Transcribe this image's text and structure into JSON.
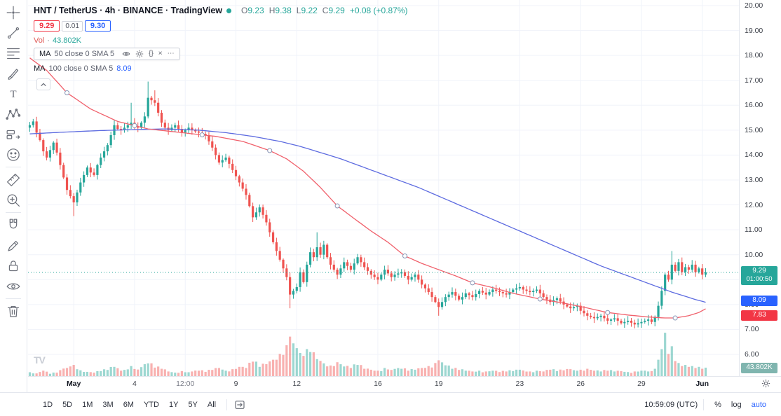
{
  "header": {
    "symbol_title": "HNT / TetherUS · 4h · BINANCE · TradingView",
    "status_dot_color": "#26a69a",
    "ohlc_pairs": [
      {
        "k": "O",
        "v": "9.23"
      },
      {
        "k": "H",
        "v": "9.38"
      },
      {
        "k": "L",
        "v": "9.22"
      },
      {
        "k": "C",
        "v": "9.29"
      }
    ],
    "ohlc_change": "+0.08 (+0.87%)",
    "ohlc_value_color": "#26a69a",
    "sell_price": "9.29",
    "spread": "0.01",
    "buy_price": "9.30",
    "sell_color": "#f23645",
    "buy_color": "#2962ff",
    "volume_row": {
      "label": "Vol",
      "sep": "·",
      "value": "43.802K",
      "label_color": "#e05c58",
      "value_color": "#26a69a"
    },
    "indicators": [
      {
        "name": "MA",
        "params": "50 close 0 SMA 5",
        "value": "",
        "value_color": "#f23645",
        "hovered": true
      },
      {
        "name": "MA",
        "params": "100 close 0 SMA 5",
        "value": "8.09",
        "value_color": "#2962ff",
        "hovered": false
      }
    ],
    "indicator_actions": [
      {
        "name": "hide"
      },
      {
        "name": "settings"
      },
      {
        "name": "source-code"
      },
      {
        "name": "remove"
      },
      {
        "name": "more"
      }
    ]
  },
  "left_toolbar": {
    "tools": [
      {
        "name": "crosshair"
      },
      {
        "name": "trend-line"
      },
      {
        "name": "fib-retracement"
      },
      {
        "name": "brush"
      },
      {
        "name": "text"
      },
      {
        "name": "xabcd-pattern"
      },
      {
        "name": "forecast"
      },
      {
        "name": "emoji"
      },
      {
        "name": "measure"
      },
      {
        "name": "zoom-in"
      },
      {
        "name": "magnet"
      },
      {
        "name": "drawing-mode"
      },
      {
        "name": "lock-all"
      },
      {
        "name": "hide-all"
      },
      {
        "name": "remove-all"
      }
    ],
    "separators_after": [
      7,
      9,
      13
    ]
  },
  "bottom_toolbar": {
    "ranges": [
      "1D",
      "5D",
      "1M",
      "3M",
      "6M",
      "YTD",
      "1Y",
      "5Y",
      "All"
    ],
    "go_to_date_icon": "go-to-date",
    "clock": "10:59:09 (UTC)",
    "percent_label": "%",
    "log_label": "log",
    "auto_label": "auto",
    "auto_color": "#2962ff"
  },
  "chart_data": {
    "type": "candlestick",
    "title": "HNT / TetherUS 4h BINANCE",
    "symbol": "HNT/USDT",
    "interval": "4h",
    "exchange": "BINANCE",
    "ohlc_current": {
      "open": 9.23,
      "high": 9.38,
      "low": 9.22,
      "close": 9.29,
      "change": "+0.08 (+0.87%)"
    },
    "up_color": "#26a69a",
    "down_color": "#ef5350",
    "grid": true,
    "visible_price_range": [
      5.2,
      20.2
    ],
    "y_ticks": [
      {
        "label": "20.00",
        "price": 20
      },
      {
        "label": "19.00",
        "price": 19
      },
      {
        "label": "18.00",
        "price": 18
      },
      {
        "label": "17.00",
        "price": 17
      },
      {
        "label": "16.00",
        "price": 16
      },
      {
        "label": "15.00",
        "price": 15
      },
      {
        "label": "14.00",
        "price": 14
      },
      {
        "label": "13.00",
        "price": 13
      },
      {
        "label": "12.00",
        "price": 12
      },
      {
        "label": "11.00",
        "price": 11
      },
      {
        "label": "10.00",
        "price": 10
      },
      {
        "label": "9.00",
        "price": 9
      },
      {
        "label": "8.00",
        "price": 8
      },
      {
        "label": "7.00",
        "price": 7
      },
      {
        "label": "6.00",
        "price": 6
      }
    ],
    "x_ticks": [
      {
        "label": "May",
        "i": 13,
        "type": "month"
      },
      {
        "label": "4",
        "i": 31,
        "type": "day"
      },
      {
        "label": "12:00",
        "i": 46,
        "type": "time"
      },
      {
        "label": "9",
        "i": 61,
        "type": "day"
      },
      {
        "label": "12",
        "i": 79,
        "type": "day"
      },
      {
        "label": "16",
        "i": 103,
        "type": "day"
      },
      {
        "label": "19",
        "i": 121,
        "type": "day"
      },
      {
        "label": "23",
        "i": 145,
        "type": "day"
      },
      {
        "label": "26",
        "i": 163,
        "type": "day"
      },
      {
        "label": "29",
        "i": 181,
        "type": "day"
      },
      {
        "label": "Jun",
        "i": 199,
        "type": "month"
      }
    ],
    "first_open": 15.1,
    "closes": [
      15.2,
      15.35,
      14.9,
      14.6,
      14.15,
      13.9,
      14.2,
      14.5,
      14.1,
      13.6,
      13.1,
      12.6,
      12.35,
      12.1,
      12.5,
      12.9,
      13.2,
      13.5,
      13.3,
      13.2,
      13.6,
      13.9,
      14.15,
      14.4,
      14.8,
      15.2,
      15.05,
      15.0,
      15.1,
      15.2,
      15.3,
      15.15,
      15.1,
      15.3,
      15.55,
      16.3,
      16.2,
      16.1,
      15.7,
      15.3,
      15.1,
      15.0,
      15.1,
      15.2,
      15.05,
      14.9,
      15.0,
      15.1,
      15.0,
      14.95,
      14.9,
      14.85,
      14.8,
      14.55,
      14.3,
      14.0,
      13.7,
      13.8,
      13.9,
      13.65,
      13.4,
      13.15,
      12.9,
      12.65,
      12.4,
      11.95,
      11.5,
      11.7,
      11.9,
      11.6,
      11.3,
      10.9,
      10.5,
      10.15,
      9.8,
      9.45,
      9.1,
      8.4,
      8.55,
      8.7,
      9.3,
      8.9,
      9.6,
      10.1,
      9.9,
      10.3,
      10.0,
      10.4,
      9.9,
      9.6,
      9.4,
      9.2,
      9.45,
      9.7,
      9.55,
      9.4,
      9.65,
      9.9,
      9.7,
      9.5,
      9.35,
      9.2,
      9.1,
      9.0,
      9.2,
      9.4,
      9.25,
      9.1,
      9.2,
      9.25,
      9.3,
      9.15,
      9.0,
      9.1,
      9.2,
      9.0,
      8.8,
      8.65,
      8.5,
      8.3,
      8.1,
      7.9,
      8.1,
      8.3,
      8.4,
      8.5,
      8.35,
      8.2,
      8.3,
      8.45,
      8.38,
      8.3,
      8.42,
      8.55,
      8.48,
      8.4,
      8.5,
      8.6,
      8.55,
      8.5,
      8.45,
      8.4,
      8.5,
      8.6,
      8.65,
      8.7,
      8.6,
      8.55,
      8.5,
      8.55,
      8.6,
      8.45,
      8.3,
      8.2,
      8.1,
      8.18,
      8.25,
      8.12,
      8.0,
      7.92,
      7.85,
      7.9,
      7.95,
      7.75,
      7.65,
      7.55,
      7.5,
      7.45,
      7.5,
      7.55,
      7.45,
      7.35,
      7.4,
      7.45,
      7.35,
      7.25,
      7.3,
      7.35,
      7.27,
      7.2,
      7.25,
      7.3,
      7.35,
      7.4,
      7.3,
      7.5,
      7.95,
      8.55,
      9.2,
      9.0,
      9.6,
      9.35,
      9.7,
      9.3,
      9.5,
      9.4,
      9.6,
      9.3,
      9.45,
      9.2,
      9.29
    ],
    "wick_spikes": [
      {
        "i": 13,
        "low": 11.55
      },
      {
        "i": 30,
        "high": 16.1
      },
      {
        "i": 35,
        "high": 16.95
      },
      {
        "i": 37,
        "high": 16.6
      },
      {
        "i": 77,
        "low": 7.85
      },
      {
        "i": 85,
        "high": 10.9
      },
      {
        "i": 121,
        "low": 7.55
      },
      {
        "i": 190,
        "high": 10.15
      }
    ],
    "ma50": {
      "name": "MA 50",
      "color": "#f0616c",
      "label_color": "#f23645",
      "current": 7.83,
      "current_label": "7.83",
      "anchors": [
        [
          0,
          17.9
        ],
        [
          5,
          17.4
        ],
        [
          11,
          16.5
        ],
        [
          18,
          15.85
        ],
        [
          26,
          15.35
        ],
        [
          35,
          15.05
        ],
        [
          45,
          14.9
        ],
        [
          55,
          14.75
        ],
        [
          63,
          14.55
        ],
        [
          71,
          14.18
        ],
        [
          76,
          13.85
        ],
        [
          81,
          13.35
        ],
        [
          86,
          12.7
        ],
        [
          91,
          11.96
        ],
        [
          96,
          11.45
        ],
        [
          101,
          10.95
        ],
        [
          106,
          10.5
        ],
        [
          111,
          9.95
        ],
        [
          116,
          9.65
        ],
        [
          121,
          9.4
        ],
        [
          126,
          9.15
        ],
        [
          131,
          8.87
        ],
        [
          137,
          8.68
        ],
        [
          143,
          8.45
        ],
        [
          151,
          8.22
        ],
        [
          157,
          8.08
        ],
        [
          163,
          7.92
        ],
        [
          171,
          7.68
        ],
        [
          177,
          7.58
        ],
        [
          183,
          7.5
        ],
        [
          188,
          7.46
        ],
        [
          191,
          7.46
        ],
        [
          195,
          7.55
        ],
        [
          198,
          7.68
        ],
        [
          200,
          7.83
        ]
      ]
    },
    "ma100": {
      "name": "MA 100",
      "color": "#5d6be0",
      "label_color": "#2962ff",
      "current": 8.09,
      "current_label": "8.09",
      "anchors": [
        [
          0,
          14.85
        ],
        [
          10,
          14.92
        ],
        [
          20,
          14.98
        ],
        [
          30,
          15.02
        ],
        [
          40,
          15.05
        ],
        [
          50,
          15.0
        ],
        [
          58,
          14.9
        ],
        [
          66,
          14.75
        ],
        [
          74,
          14.55
        ],
        [
          80,
          14.35
        ],
        [
          86,
          14.1
        ],
        [
          92,
          13.85
        ],
        [
          97,
          13.6
        ],
        [
          103,
          13.3
        ],
        [
          109,
          13.0
        ],
        [
          115,
          12.7
        ],
        [
          121,
          12.35
        ],
        [
          127,
          12.0
        ],
        [
          133,
          11.65
        ],
        [
          139,
          11.3
        ],
        [
          145,
          10.95
        ],
        [
          151,
          10.6
        ],
        [
          157,
          10.25
        ],
        [
          163,
          9.9
        ],
        [
          169,
          9.55
        ],
        [
          175,
          9.25
        ],
        [
          181,
          8.95
        ],
        [
          186,
          8.7
        ],
        [
          190,
          8.5
        ],
        [
          194,
          8.33
        ],
        [
          197,
          8.2
        ],
        [
          200,
          8.09
        ]
      ]
    },
    "volume": {
      "name": "Vol",
      "current_k": 43.802,
      "current_label": "43.802K",
      "scale_max_k": 240,
      "label_bg": "#80b5af",
      "anchors": [
        [
          0,
          20
        ],
        [
          2,
          14
        ],
        [
          4,
          28
        ],
        [
          6,
          12
        ],
        [
          8,
          18
        ],
        [
          11,
          42
        ],
        [
          13,
          58
        ],
        [
          15,
          30
        ],
        [
          17,
          22
        ],
        [
          19,
          18
        ],
        [
          21,
          26
        ],
        [
          23,
          32
        ],
        [
          25,
          48
        ],
        [
          27,
          28
        ],
        [
          30,
          52
        ],
        [
          32,
          34
        ],
        [
          35,
          66
        ],
        [
          37,
          44
        ],
        [
          39,
          38
        ],
        [
          41,
          24
        ],
        [
          43,
          18
        ],
        [
          45,
          26
        ],
        [
          47,
          20
        ],
        [
          50,
          28
        ],
        [
          52,
          22
        ],
        [
          54,
          32
        ],
        [
          56,
          42
        ],
        [
          58,
          28
        ],
        [
          60,
          36
        ],
        [
          62,
          48
        ],
        [
          64,
          42
        ],
        [
          66,
          75
        ],
        [
          68,
          48
        ],
        [
          70,
          62
        ],
        [
          72,
          85
        ],
        [
          74,
          115
        ],
        [
          76,
          160
        ],
        [
          77,
          205
        ],
        [
          78,
          170
        ],
        [
          79,
          145
        ],
        [
          80,
          120
        ],
        [
          81,
          105
        ],
        [
          83,
          125
        ],
        [
          85,
          88
        ],
        [
          87,
          66
        ],
        [
          89,
          55
        ],
        [
          91,
          72
        ],
        [
          93,
          50
        ],
        [
          95,
          42
        ],
        [
          97,
          58
        ],
        [
          99,
          38
        ],
        [
          101,
          33
        ],
        [
          103,
          28
        ],
        [
          105,
          42
        ],
        [
          107,
          32
        ],
        [
          110,
          38
        ],
        [
          112,
          28
        ],
        [
          114,
          33
        ],
        [
          116,
          42
        ],
        [
          118,
          52
        ],
        [
          120,
          68
        ],
        [
          121,
          82
        ],
        [
          123,
          56
        ],
        [
          125,
          38
        ],
        [
          127,
          32
        ],
        [
          129,
          28
        ],
        [
          131,
          24
        ],
        [
          133,
          28
        ],
        [
          135,
          24
        ],
        [
          137,
          28
        ],
        [
          139,
          21
        ],
        [
          141,
          24
        ],
        [
          143,
          26
        ],
        [
          145,
          33
        ],
        [
          148,
          24
        ],
        [
          150,
          28
        ],
        [
          152,
          24
        ],
        [
          154,
          33
        ],
        [
          156,
          26
        ],
        [
          158,
          30
        ],
        [
          160,
          36
        ],
        [
          162,
          28
        ],
        [
          163,
          33
        ],
        [
          165,
          38
        ],
        [
          167,
          28
        ],
        [
          169,
          24
        ],
        [
          171,
          28
        ],
        [
          173,
          24
        ],
        [
          175,
          26
        ],
        [
          177,
          21
        ],
        [
          179,
          24
        ],
        [
          181,
          28
        ],
        [
          183,
          24
        ],
        [
          184,
          26
        ],
        [
          185,
          38
        ],
        [
          186,
          85
        ],
        [
          187,
          140
        ],
        [
          188,
          225
        ],
        [
          189,
          115
        ],
        [
          190,
          155
        ],
        [
          191,
          78
        ],
        [
          192,
          68
        ],
        [
          193,
          52
        ],
        [
          194,
          58
        ],
        [
          195,
          48
        ],
        [
          196,
          52
        ],
        [
          197,
          42
        ],
        [
          198,
          48
        ],
        [
          199,
          38
        ],
        [
          200,
          43.802
        ]
      ]
    },
    "price_line": {
      "price": 9.29,
      "label": "9.29",
      "countdown": "01:00:50",
      "label_bg": "#26a69a"
    },
    "selected_line_handles": {
      "on": "ma50",
      "indices": [
        11,
        31,
        51,
        71,
        91,
        111,
        131,
        151,
        171,
        191
      ]
    }
  }
}
